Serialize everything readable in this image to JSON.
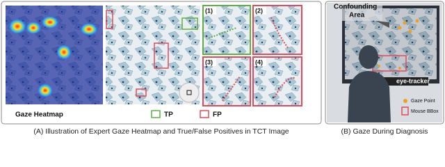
{
  "panel_a": {
    "caption": "(A) Illustration of Expert Gaze Heatmap and True/False Positives in TCT Image",
    "heatmap_label": "Gaze Heatmap",
    "tp_label": "TP",
    "fp_label": "FP",
    "zooms": [
      "(1)",
      "(2)",
      "(3)",
      "(4)"
    ]
  },
  "panel_b": {
    "caption": "(B) Gaze During Diagnosis",
    "confounding": "Confounding",
    "area": "Area",
    "eye_tracker": "eye-tracker",
    "gaze_point": "Gaze Point",
    "mouse_bbox": "Mouse BBox"
  }
}
